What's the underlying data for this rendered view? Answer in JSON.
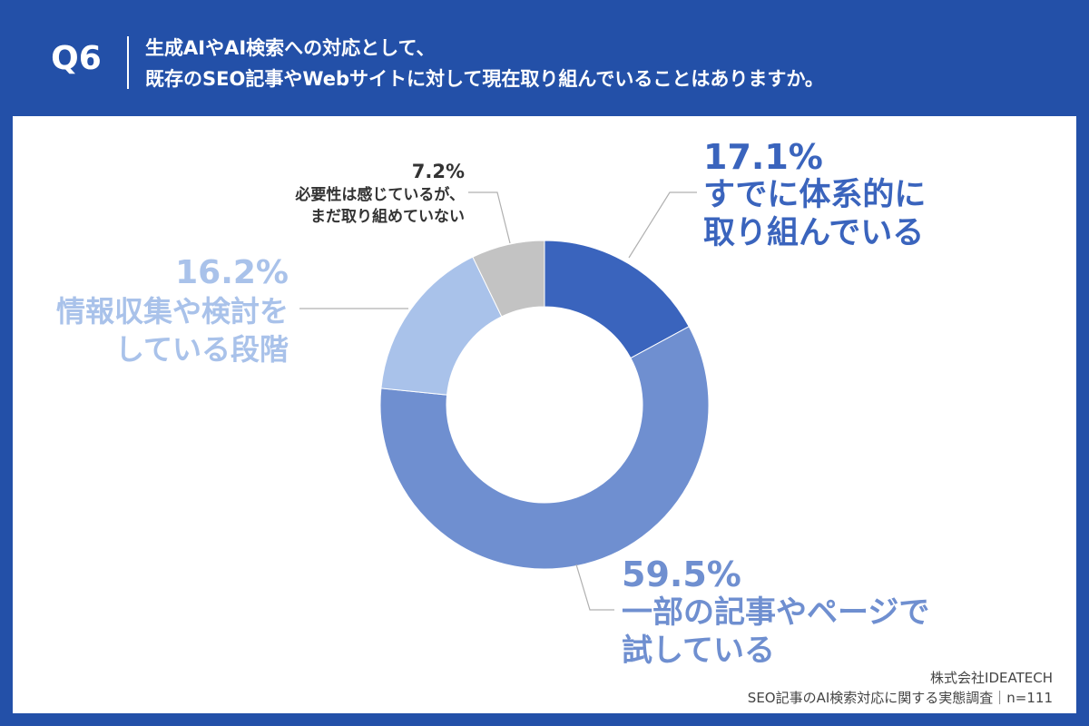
{
  "header": {
    "q_number": "Q6",
    "title_line1": "生成AIやAI検索への対応として、",
    "title_line2": "既存のSEO記事やWebサイトに対して現在取り組んでいることはありますか。"
  },
  "chart_data": {
    "type": "pie",
    "donut": true,
    "start_angle_deg": 0,
    "direction": "clockwise",
    "slices": [
      {
        "pct_label": "17.1%",
        "text": "すでに体系的に\n取り組んでいる",
        "value": 17.1,
        "color": "#3a64bd"
      },
      {
        "pct_label": "59.5%",
        "text": "一部の記事やページで\n試している",
        "value": 59.5,
        "color": "#6f8fd0"
      },
      {
        "pct_label": "16.2%",
        "text": "情報収集や検討を\nしている段階",
        "value": 16.2,
        "color": "#a9c2ea"
      },
      {
        "pct_label": "7.2%",
        "text": "必要性は感じているが、\nまだ取り組めていない",
        "value": 7.2,
        "color": "#c3c3c3"
      }
    ]
  },
  "footer": {
    "company": "株式会社IDEATECH",
    "survey": "SEO記事のAI検索対応に関する実態調査｜n=111"
  }
}
